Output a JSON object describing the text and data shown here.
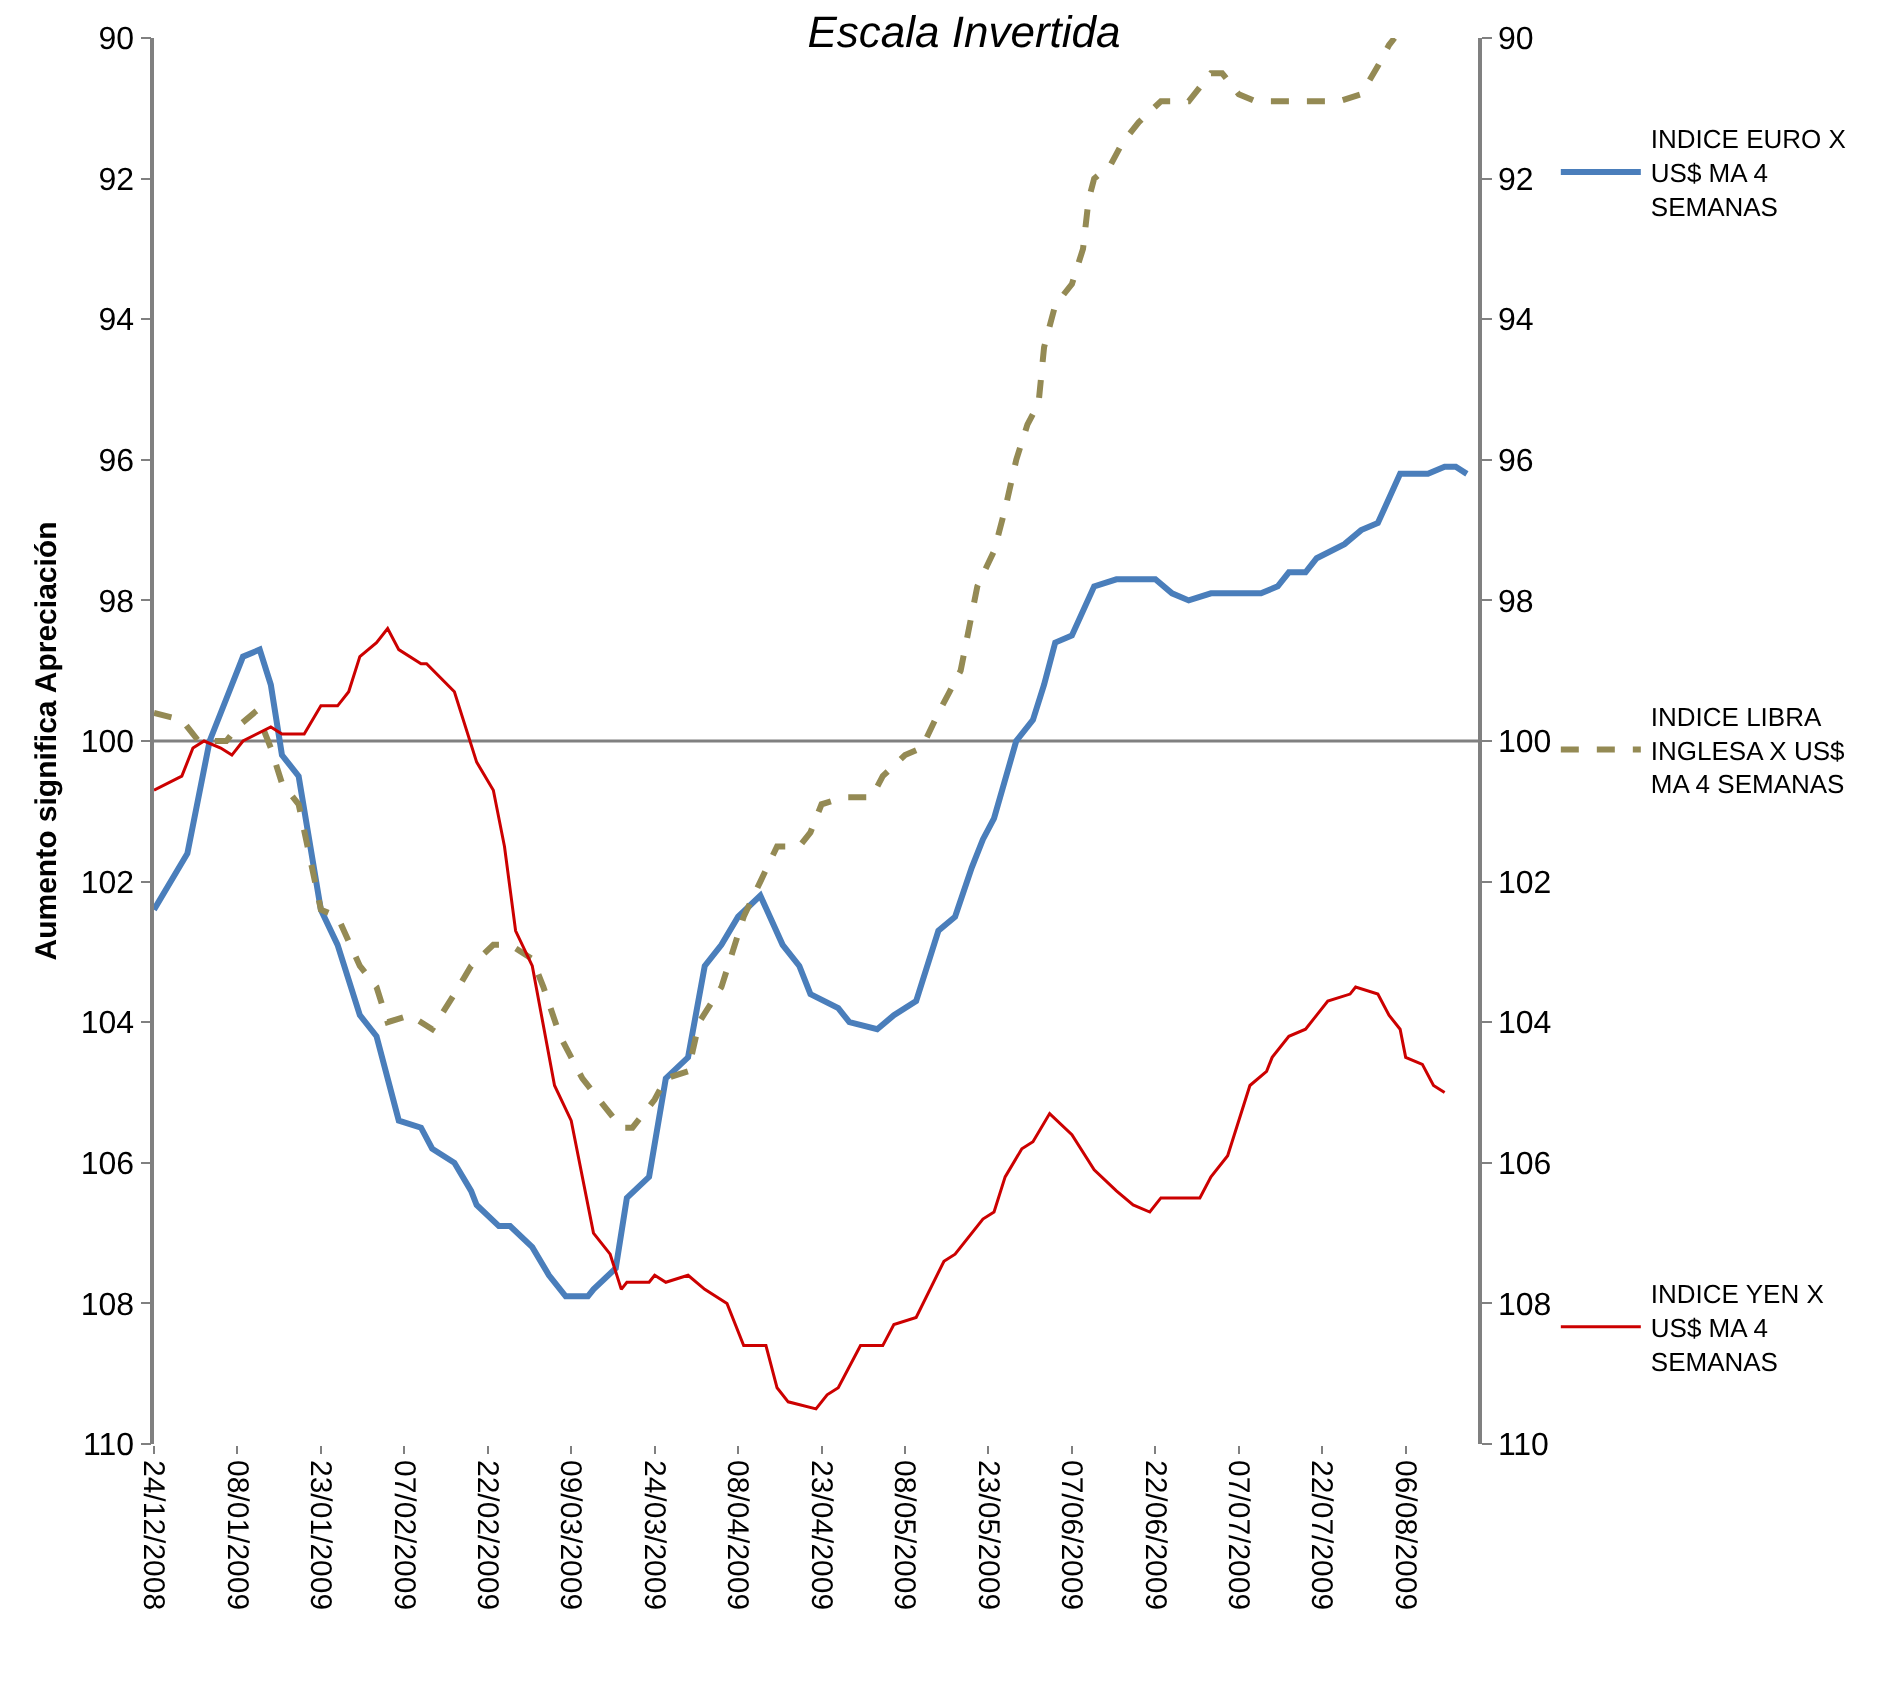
{
  "chart_data": {
    "type": "line",
    "title": "Escala Invertida",
    "ylabel": "Aumento significa Apreciación",
    "xlim": [
      "2008-12-24",
      "2009-08-19"
    ],
    "xticks": [
      {
        "value": "2008-12-24",
        "label": "24/12/2008"
      },
      {
        "value": "2009-01-08",
        "label": "08/01/2009"
      },
      {
        "value": "2009-01-23",
        "label": "23/01/2009"
      },
      {
        "value": "2009-02-07",
        "label": "07/02/2009"
      },
      {
        "value": "2009-02-22",
        "label": "22/02/2009"
      },
      {
        "value": "2009-03-09",
        "label": "09/03/2009"
      },
      {
        "value": "2009-03-24",
        "label": "24/03/2009"
      },
      {
        "value": "2009-04-08",
        "label": "08/04/2009"
      },
      {
        "value": "2009-04-23",
        "label": "23/04/2009"
      },
      {
        "value": "2009-05-08",
        "label": "08/05/2009"
      },
      {
        "value": "2009-05-23",
        "label": "23/05/2009"
      },
      {
        "value": "2009-06-07",
        "label": "07/06/2009"
      },
      {
        "value": "2009-06-22",
        "label": "22/06/2009"
      },
      {
        "value": "2009-07-07",
        "label": "07/07/2009"
      },
      {
        "value": "2009-07-22",
        "label": "22/07/2009"
      },
      {
        "value": "2009-08-06",
        "label": "06/08/2009"
      }
    ],
    "ylim": [
      110,
      90
    ],
    "yticks": [
      90,
      92,
      94,
      96,
      98,
      100,
      102,
      104,
      106,
      108,
      110
    ],
    "y2lim": [
      110,
      90
    ],
    "y2ticks": [
      90,
      92,
      94,
      96,
      98,
      100,
      102,
      104,
      106,
      108,
      110
    ],
    "grid": false,
    "legend": "right",
    "marker": "none",
    "ref_lines": [
      {
        "axis": "y",
        "value": 100,
        "color": "#808080"
      }
    ],
    "series": [
      {
        "name": "INDICE EURO X US$ MA 4 SEMANAS",
        "color": "#4a7ebb",
        "line_style": "solid",
        "x": [
          "2008-12-24",
          "2008-12-30",
          "2009-01-03",
          "2009-01-07",
          "2009-01-09",
          "2009-01-12",
          "2009-01-14",
          "2009-01-16",
          "2009-01-19",
          "2009-01-23",
          "2009-01-26",
          "2009-01-30",
          "2009-02-02",
          "2009-02-06",
          "2009-02-10",
          "2009-02-12",
          "2009-02-16",
          "2009-02-19",
          "2009-02-20",
          "2009-02-24",
          "2009-02-26",
          "2009-03-02",
          "2009-03-05",
          "2009-03-08",
          "2009-03-12",
          "2009-03-13",
          "2009-03-17",
          "2009-03-19",
          "2009-03-23",
          "2009-03-26",
          "2009-03-30",
          "2009-04-02",
          "2009-04-05",
          "2009-04-08",
          "2009-04-12",
          "2009-04-16",
          "2009-04-19",
          "2009-04-21",
          "2009-04-26",
          "2009-04-28",
          "2009-05-03",
          "2009-05-06",
          "2009-05-10",
          "2009-05-14",
          "2009-05-17",
          "2009-05-20",
          "2009-05-22",
          "2009-05-24",
          "2009-05-28",
          "2009-05-31",
          "2009-06-02",
          "2009-06-04",
          "2009-06-07",
          "2009-06-11",
          "2009-06-15",
          "2009-06-17",
          "2009-06-22",
          "2009-06-25",
          "2009-06-28",
          "2009-07-02",
          "2009-07-06",
          "2009-07-11",
          "2009-07-14",
          "2009-07-16",
          "2009-07-19",
          "2009-07-21",
          "2009-07-26",
          "2009-07-29",
          "2009-08-01",
          "2009-08-05",
          "2009-08-10",
          "2009-08-13",
          "2009-08-15",
          "2009-08-17"
        ],
        "values": [
          102.4,
          101.6,
          100.0,
          99.2,
          98.8,
          98.7,
          99.2,
          100.2,
          100.5,
          102.4,
          102.9,
          103.9,
          104.2,
          105.4,
          105.5,
          105.8,
          106.0,
          106.4,
          106.6,
          106.9,
          106.9,
          107.2,
          107.6,
          107.9,
          107.9,
          107.8,
          107.5,
          106.5,
          106.2,
          104.8,
          104.5,
          103.2,
          102.9,
          102.5,
          102.2,
          102.9,
          103.2,
          103.6,
          103.8,
          104.0,
          104.1,
          103.9,
          103.7,
          102.7,
          102.5,
          101.8,
          101.4,
          101.1,
          100.0,
          99.7,
          99.2,
          98.6,
          98.5,
          97.8,
          97.7,
          97.7,
          97.7,
          97.9,
          98.0,
          97.9,
          97.9,
          97.9,
          97.8,
          97.6,
          97.6,
          97.4,
          97.2,
          97.0,
          96.9,
          96.2,
          96.2,
          96.1,
          96.1,
          96.2
        ]
      },
      {
        "name": "INDICE LIBRA INGLESA X US$ MA 4 SEMANAS",
        "color": "#948a54",
        "line_style": "dashed",
        "x": [
          "2008-12-24",
          "2008-12-29",
          "2009-01-01",
          "2009-01-04",
          "2009-01-06",
          "2009-01-08",
          "2009-01-11",
          "2009-01-12",
          "2009-01-14",
          "2009-01-16",
          "2009-01-19",
          "2009-01-23",
          "2009-01-26",
          "2009-01-30",
          "2009-02-02",
          "2009-02-04",
          "2009-02-08",
          "2009-02-12",
          "2009-02-16",
          "2009-02-19",
          "2009-02-23",
          "2009-02-26",
          "2009-03-02",
          "2009-03-04",
          "2009-03-07",
          "2009-03-11",
          "2009-03-14",
          "2009-03-18",
          "2009-03-20",
          "2009-03-24",
          "2009-03-26",
          "2009-03-30",
          "2009-04-01",
          "2009-04-05",
          "2009-04-09",
          "2009-04-12",
          "2009-04-15",
          "2009-04-19",
          "2009-04-21",
          "2009-04-23",
          "2009-04-27",
          "2009-05-02",
          "2009-05-04",
          "2009-05-08",
          "2009-05-11",
          "2009-05-14",
          "2009-05-16",
          "2009-05-18",
          "2009-05-21",
          "2009-05-24",
          "2009-05-26",
          "2009-05-28",
          "2009-05-30",
          "2009-06-01",
          "2009-06-02",
          "2009-06-04",
          "2009-06-07",
          "2009-06-09",
          "2009-06-10",
          "2009-06-11",
          "2009-06-14",
          "2009-06-16",
          "2009-06-19",
          "2009-06-23",
          "2009-06-28",
          "2009-07-02",
          "2009-07-04",
          "2009-07-07",
          "2009-07-10",
          "2009-07-15",
          "2009-07-20",
          "2009-07-25",
          "2009-07-29",
          "2009-08-01",
          "2009-08-03",
          "2009-08-04"
        ],
        "values": [
          99.6,
          99.7,
          100.0,
          100.0,
          100.0,
          99.8,
          99.6,
          99.7,
          100.1,
          100.6,
          100.9,
          102.4,
          102.5,
          103.2,
          103.5,
          104.0,
          103.9,
          104.1,
          103.6,
          103.2,
          102.9,
          102.9,
          103.1,
          103.5,
          104.2,
          104.8,
          105.1,
          105.5,
          105.5,
          105.1,
          104.8,
          104.7,
          104.0,
          103.5,
          102.5,
          102.0,
          101.5,
          101.5,
          101.3,
          100.9,
          100.8,
          100.8,
          100.5,
          100.2,
          100.1,
          99.6,
          99.3,
          99.0,
          97.8,
          97.3,
          96.7,
          96.0,
          95.5,
          95.2,
          94.4,
          93.8,
          93.5,
          93.0,
          92.3,
          92.0,
          91.8,
          91.5,
          91.2,
          90.9,
          90.9,
          90.5,
          90.5,
          90.8,
          90.9,
          90.9,
          90.9,
          90.9,
          90.8,
          90.4,
          90.1,
          90.0
        ]
      },
      {
        "name": "INDICE YEN X US$ MA 4 SEMANAS",
        "color": "#cc0000",
        "line_style": "solid",
        "axis": "y2",
        "x": [
          "2008-12-24",
          "2008-12-29",
          "2008-12-31",
          "2009-01-02",
          "2009-01-05",
          "2009-01-07",
          "2009-01-09",
          "2009-01-14",
          "2009-01-16",
          "2009-01-20",
          "2009-01-23",
          "2009-01-26",
          "2009-01-28",
          "2009-01-30",
          "2009-02-02",
          "2009-02-04",
          "2009-02-06",
          "2009-02-10",
          "2009-02-11",
          "2009-02-16",
          "2009-02-20",
          "2009-02-23",
          "2009-02-25",
          "2009-02-27",
          "2009-03-02",
          "2009-03-06",
          "2009-03-09",
          "2009-03-13",
          "2009-03-16",
          "2009-03-18",
          "2009-03-19",
          "2009-03-23",
          "2009-03-24",
          "2009-03-26",
          "2009-03-30",
          "2009-04-02",
          "2009-04-06",
          "2009-04-09",
          "2009-04-13",
          "2009-04-15",
          "2009-04-17",
          "2009-04-22",
          "2009-04-24",
          "2009-04-26",
          "2009-04-30",
          "2009-05-04",
          "2009-05-06",
          "2009-05-10",
          "2009-05-15",
          "2009-05-17",
          "2009-05-22",
          "2009-05-24",
          "2009-05-26",
          "2009-05-29",
          "2009-05-31",
          "2009-06-03",
          "2009-06-07",
          "2009-06-11",
          "2009-06-15",
          "2009-06-18",
          "2009-06-21",
          "2009-06-23",
          "2009-06-30",
          "2009-07-02",
          "2009-07-05",
          "2009-07-09",
          "2009-07-12",
          "2009-07-13",
          "2009-07-16",
          "2009-07-19",
          "2009-07-21",
          "2009-07-23",
          "2009-07-27",
          "2009-07-28",
          "2009-08-01",
          "2009-08-03",
          "2009-08-05",
          "2009-08-06",
          "2009-08-09",
          "2009-08-11",
          "2009-08-13"
        ],
        "values": [
          100.7,
          100.5,
          100.1,
          100.0,
          100.1,
          100.2,
          100.0,
          99.8,
          99.9,
          99.9,
          99.5,
          99.5,
          99.3,
          98.8,
          98.6,
          98.4,
          98.7,
          98.9,
          98.9,
          99.3,
          100.3,
          100.7,
          101.5,
          102.7,
          103.2,
          104.9,
          105.4,
          107.0,
          107.3,
          107.8,
          107.7,
          107.7,
          107.6,
          107.7,
          107.6,
          107.8,
          108.0,
          108.6,
          108.6,
          109.2,
          109.4,
          109.5,
          109.3,
          109.2,
          108.6,
          108.6,
          108.3,
          108.2,
          107.4,
          107.3,
          106.8,
          106.7,
          106.2,
          105.8,
          105.7,
          105.3,
          105.6,
          106.1,
          106.4,
          106.6,
          106.7,
          106.5,
          106.5,
          106.2,
          105.9,
          104.9,
          104.7,
          104.5,
          104.2,
          104.1,
          103.9,
          103.7,
          103.6,
          103.5,
          103.6,
          103.9,
          104.1,
          104.5,
          104.6,
          104.9,
          105.0
        ]
      }
    ]
  }
}
